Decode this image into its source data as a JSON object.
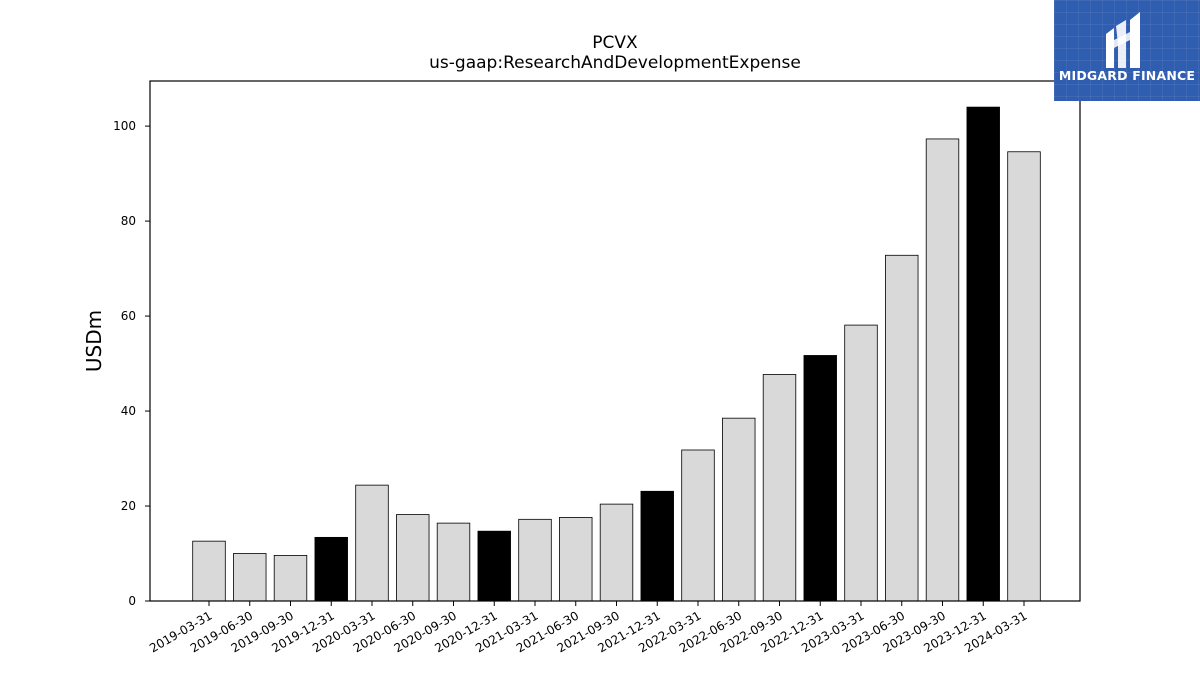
{
  "chart_data": {
    "type": "bar",
    "title": "PCVX",
    "subtitle": "us-gaap:ResearchAndDevelopmentExpense",
    "xlabel": "",
    "ylabel": "USDm",
    "ylim": [
      0,
      109.5
    ],
    "yticks": [
      0,
      20,
      40,
      60,
      80,
      100
    ],
    "grid": false,
    "categories": [
      "2019-03-31",
      "2019-06-30",
      "2019-09-30",
      "2019-12-31",
      "2020-03-31",
      "2020-06-30",
      "2020-09-30",
      "2020-12-31",
      "2021-03-31",
      "2021-06-30",
      "2021-09-30",
      "2021-12-31",
      "2022-03-31",
      "2022-06-30",
      "2022-09-30",
      "2022-12-31",
      "2023-03-31",
      "2023-06-30",
      "2023-09-30",
      "2023-12-31",
      "2024-03-31"
    ],
    "values": [
      12.6,
      10.0,
      9.6,
      13.4,
      24.4,
      18.2,
      16.4,
      14.7,
      17.2,
      17.6,
      20.4,
      23.1,
      31.8,
      38.5,
      47.7,
      51.7,
      58.1,
      72.8,
      97.3,
      104.0,
      94.6
    ],
    "bar_colors": {
      "default": "#d9d9d9",
      "year_end": "#000000"
    }
  },
  "logo": {
    "text": "MIDGARD FINANCE",
    "bg_color": "#2f5db0"
  }
}
